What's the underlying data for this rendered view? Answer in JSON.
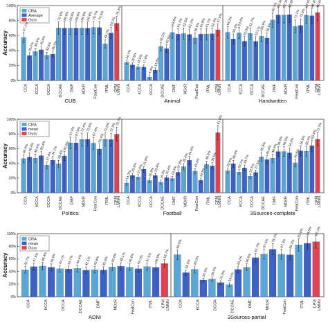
{
  "colors": {
    "cra": "#5aa7d6",
    "average": "#3d61c5",
    "ours": "#e0434c",
    "error": "#111111"
  },
  "chart_data": [
    {
      "type": "bar",
      "ylabel": "Accuracy",
      "ylim": [
        0,
        100
      ],
      "yticks": [
        "0%",
        "20%",
        "40%",
        "60%",
        "80%",
        "100%"
      ],
      "legend": [
        "CRA",
        "Average",
        "Ours"
      ],
      "legend_position": "top-left",
      "categories": [
        "CCA",
        "KCCA",
        "DCCA",
        "DCCAE",
        "DMF",
        "MDcR",
        "FeatCon",
        "ITML",
        "LMNN",
        "CPM"
      ],
      "groups": [
        {
          "name": "CUB",
          "values": [
            57.1,
            33.2,
            38.5,
            40.8,
            33.5,
            35.0,
            70.0,
            69.8,
            69.8,
            69.8,
            69.9,
            69.8,
            70.7,
            70.5,
            48.7,
            63.2,
            76.3
          ],
          "labels": [
            "57.1%",
            "33.2%",
            "38.5%",
            "40.8%",
            "33.5%",
            "35.0%",
            "70.0%",
            "69.8%",
            "69.8%",
            "69.8%",
            "69.9%",
            "69.8%",
            "70.7%",
            "70.5%",
            "48.7%",
            "63.2%",
            "76.3%"
          ]
        },
        {
          "name": "Animal",
          "values": [
            24.1,
            20.5,
            18.0,
            17.8,
            4.4,
            13.8,
            45.2,
            42.5,
            63.9,
            61.7,
            62.5,
            61.2,
            56.6,
            61.8,
            61.7,
            62.3,
            67.6
          ],
          "labels": [
            "24.1%",
            "20.5%",
            "18.0%",
            "17.8%",
            "4.4%",
            "13.8%",
            "45.2%",
            "42.5%",
            "63.9%",
            "61.7%",
            "62.5%",
            "61.2%",
            "56.6%",
            "61.8%",
            "61.7%",
            "62.3%",
            "67.6%"
          ]
        },
        {
          "name": "Handwritten",
          "values": [
            64.2,
            55.3,
            63.4,
            52.3,
            62.7,
            52.1,
            58.9,
            56.5,
            80.7,
            87.4,
            87.3,
            87.8,
            72.1,
            73.3,
            87.0,
            86.3,
            90.6
          ],
          "labels": [
            "64.2%",
            "55.3%",
            "63.4%",
            "52.3%",
            "62.7%",
            "52.1%",
            "58.9%",
            "56.5%",
            "80.7%",
            "87.4%",
            "87.3%",
            "87.8%",
            "72.1%",
            "73.3%",
            "87.0%",
            "86.3%",
            "90.6%"
          ]
        }
      ]
    },
    {
      "type": "bar",
      "ylabel": "Accuracy",
      "ylim": [
        0,
        100
      ],
      "yticks": [
        "0%",
        "20%",
        "40%",
        "60%",
        "80%",
        "100%"
      ],
      "legend": [
        "CRA",
        "mean",
        "Ours"
      ],
      "legend_position": "top-left",
      "categories": [
        "CCA",
        "KCCA",
        "DCCA",
        "DCCAE",
        "DMF",
        "MDcR",
        "FeatCon",
        "ITML",
        "LMNN",
        "CPM"
      ],
      "groups": [
        {
          "name": "Politics",
          "values": [
            46.3,
            48.4,
            46.9,
            50.4,
            37.4,
            44.1,
            39.4,
            50.0,
            67.9,
            67.6,
            72.4,
            72.6,
            67.4,
            59.4,
            72.6,
            72.3,
            79.7
          ],
          "labels": [
            "46.3%",
            "48.4%",
            "46.9%",
            "50.4%",
            "37.4%",
            "44.1%",
            "39.4%",
            "50.0%",
            "67.9%",
            "67.6%",
            "72.4%",
            "72.6%",
            "67.4%",
            "59.4%",
            "72.6%",
            "72.3%",
            "79.7%"
          ]
        },
        {
          "name": "Football",
          "values": [
            13.2,
            23.5,
            21.6,
            31.9,
            16.9,
            23.4,
            14.3,
            20.4,
            19.3,
            27.8,
            35.4,
            44.0,
            29.3,
            16.8,
            38.3,
            36.5,
            81.6
          ],
          "labels": [
            "13.2%",
            "23.5%",
            "21.6%",
            "31.9%",
            "16.9%",
            "23.4%",
            "14.3%",
            "20.4%",
            "19.3%",
            "27.8%",
            "35.4%",
            "44.0%",
            "29.3%",
            "16.8%",
            "38.3%",
            "36.5%",
            "81.6%"
          ]
        },
        {
          "name": "3Sources-complete",
          "values": [
            29.8,
            39.4,
            28.1,
            33.7,
            22.5,
            27.5,
            48.9,
            45.0,
            46.9,
            56.0,
            56.0,
            54.2,
            40.6,
            56.9,
            56.5,
            63.9,
            72.7
          ],
          "labels": [
            "29.8%",
            "39.4%",
            "28.1%",
            "33.7%",
            "22.5%",
            "27.5%",
            "48.9%",
            "45.0%",
            "46.9%",
            "56.0%",
            "56.0%",
            "54.2%",
            "40.6%",
            "56.9%",
            "56.5%",
            "63.9%",
            "72.7%"
          ]
        }
      ]
    },
    {
      "type": "bar",
      "ylabel": "Accuracy",
      "ylim": [
        0,
        100
      ],
      "yticks": [
        "0%",
        "20%",
        "40%",
        "60%",
        "80%",
        "100%"
      ],
      "legend": [
        "CRA",
        "mean",
        "Ours"
      ],
      "legend_position": "top-left",
      "categories": [
        "CCA",
        "KCCA",
        "DCCA",
        "DCCAE",
        "DMF",
        "MDcR",
        "FeatCon",
        "ITML",
        "LMNN",
        "CPM"
      ],
      "groups": [
        {
          "name": "ADNI",
          "values": [
            42.7,
            47.5,
            48.4,
            46.6,
            44.1,
            43.7,
            44.8,
            42.1,
            42.8,
            42.3,
            46.8,
            48.1,
            46.6,
            44.1,
            47.5,
            46.5,
            52.7
          ],
          "labels": [
            "42.7%",
            "47.5%",
            "48.4%",
            "46.6%",
            "44.1%",
            "43.7%",
            "44.8%",
            "42.1%",
            "42.8%",
            "42.3%",
            "46.8%",
            "48.1%",
            "46.6%",
            "44.1%",
            "47.5%",
            "46.5%",
            "52.7%"
          ]
        },
        {
          "name": "3Sources-partial",
          "values": [
            66.5,
            38.0,
            43.3,
            26.3,
            28.0,
            22.3,
            19.0,
            43.2,
            46.6,
            61.7,
            67.5,
            75.1,
            67.3,
            66.2,
            82.0,
            84.6,
            87.1
          ],
          "labels": [
            "66.5%",
            "38.0%",
            "43.3%",
            "26.3%",
            "28.0%",
            "22.3%",
            "19.0%",
            "43.2%",
            "46.6%",
            "61.7%",
            "67.5%",
            "75.1%",
            "67.3%",
            "66.2%",
            "82.0%",
            "84.6%",
            "87.1%"
          ]
        }
      ]
    }
  ]
}
